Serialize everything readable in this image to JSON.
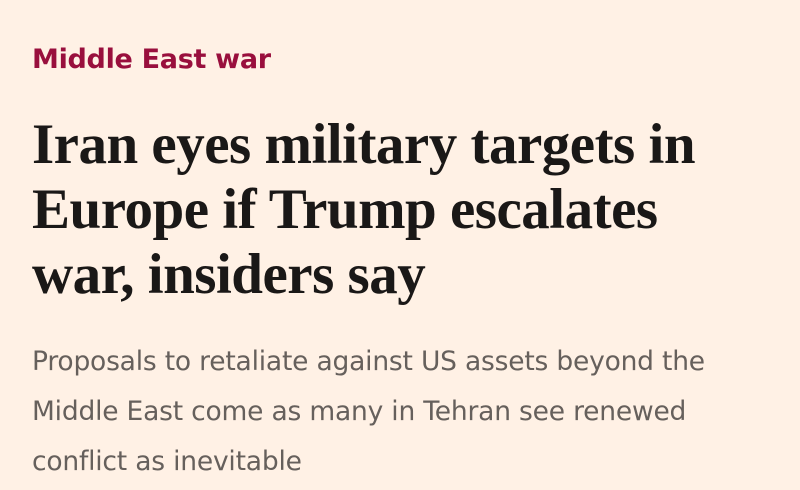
{
  "topic": "Middle East war",
  "headline": {
    "lines": [
      "Iran eyes military targets in",
      "Europe if Trump escalates",
      "war, insiders say"
    ]
  },
  "standfirst": {
    "lines": [
      "Proposals to retaliate against US assets beyond the",
      "Middle East come as many in Tehran see renewed",
      "conflict as inevitable"
    ]
  }
}
